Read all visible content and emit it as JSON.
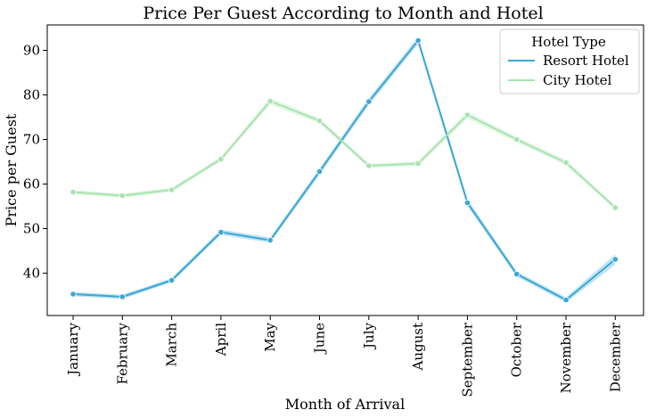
{
  "chart_data": {
    "type": "line",
    "title": "Price Per Guest According to Month and Hotel",
    "xlabel": "Month of Arrival",
    "ylabel": "Price per Guest",
    "categories": [
      "January",
      "February",
      "March",
      "April",
      "May",
      "June",
      "July",
      "August",
      "September",
      "October",
      "November",
      "December"
    ],
    "ylim": [
      30.5,
      95.7
    ],
    "yticks": [
      40,
      50,
      60,
      70,
      80,
      90
    ],
    "grid": false,
    "legend": {
      "title": "Hotel Type",
      "placement": "top-right"
    },
    "series": [
      {
        "name": "Resort Hotel",
        "color": "#3aa7d6",
        "band_color": "#a6d8ee",
        "values": [
          35.3,
          34.7,
          38.4,
          49.2,
          47.4,
          62.8,
          78.5,
          92.2,
          55.8,
          39.8,
          34.0,
          43.1
        ],
        "ci_half_width": [
          0.5,
          0.5,
          0.5,
          0.6,
          0.6,
          0.7,
          0.8,
          0.8,
          0.8,
          0.6,
          0.6,
          1.2
        ]
      },
      {
        "name": "City Hotel",
        "color": "#a8e3b0",
        "band_color": "#d9f3dc",
        "values": [
          58.2,
          57.4,
          58.7,
          65.6,
          78.6,
          74.2,
          64.1,
          64.6,
          75.5,
          70.0,
          64.8,
          54.7
        ],
        "ci_half_width": [
          0.5,
          0.5,
          0.5,
          0.5,
          0.8,
          0.6,
          0.5,
          0.5,
          0.8,
          0.6,
          0.6,
          0.5
        ]
      }
    ]
  }
}
